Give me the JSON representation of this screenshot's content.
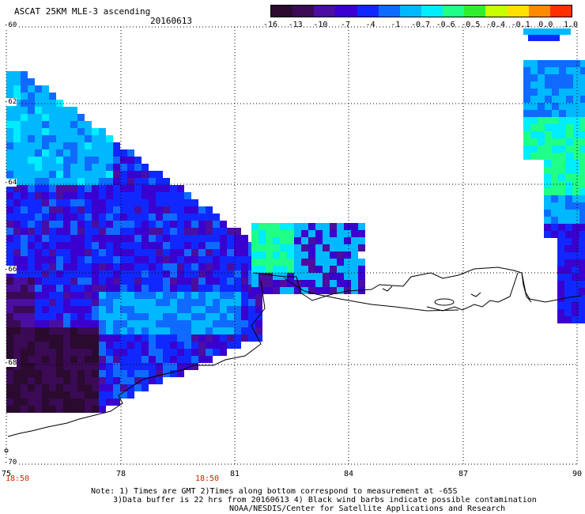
{
  "header": {
    "title": "ASCAT 25KM MLE-3 ascending",
    "date": "20160613"
  },
  "colorbar": {
    "labels": [
      "-16",
      "-13",
      "-10",
      "-7",
      "-4",
      "-1",
      "-0.7",
      "-0.6",
      "-0.5",
      "-0.4",
      "-0.1",
      "0.0",
      "1.0"
    ],
    "colors": [
      "#2a0a2e",
      "#3a0a55",
      "#4a0ea0",
      "#3a00d0",
      "#1028ff",
      "#0f6bff",
      "#00b8ff",
      "#00ecff",
      "#20ff88",
      "#2fee2f",
      "#c8ff00",
      "#ffe000",
      "#ff8a00",
      "#ff3000"
    ]
  },
  "axes": {
    "lat_labels": [
      "-60",
      "-62",
      "-64",
      "-66",
      "-68",
      "-70"
    ],
    "lon_labels": [
      "75",
      "78",
      "81",
      "84",
      "87",
      "90"
    ],
    "time_labels": [
      "18:50",
      "18:50"
    ]
  },
  "notes": {
    "line1": "Note: 1) Times are GMT 2)Times along bottom correspond to measurement at -65S",
    "line2": "3)Data buffer is 22 hrs from 20160613 4) Black wind barbs indicate possible contamination",
    "line3": "NOAA/NESDIS/Center for Satellite Applications and Research"
  }
}
